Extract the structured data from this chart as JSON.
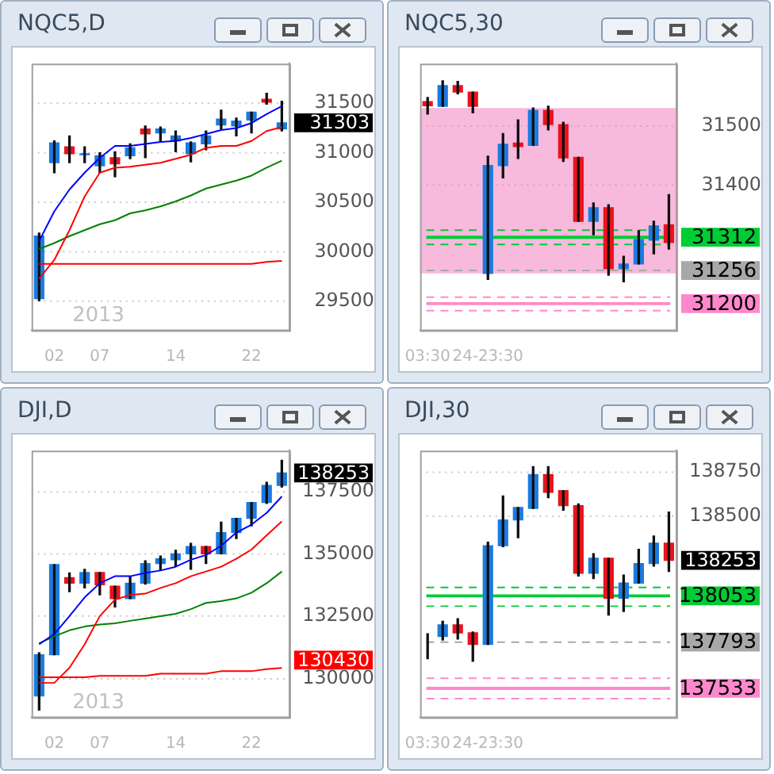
{
  "chart_data": [
    {
      "type": "candlestick",
      "title": "NQC5,D",
      "categories": [
        null,
        "02",
        null,
        null,
        "07",
        null,
        null,
        null,
        null,
        "14",
        null,
        null,
        null,
        null,
        "22",
        null,
        null
      ],
      "ohlc": [
        [
          29530,
          30190,
          29510,
          30160
        ],
        [
          30900,
          31120,
          30800,
          31100
        ],
        [
          31060,
          31170,
          30900,
          30990
        ],
        [
          30980,
          31060,
          30900,
          30990
        ],
        [
          30870,
          31000,
          30800,
          30970
        ],
        [
          30950,
          31010,
          30760,
          30890
        ],
        [
          30970,
          31090,
          30940,
          31050
        ],
        [
          31240,
          31270,
          30950,
          31190
        ],
        [
          31200,
          31260,
          31120,
          31240
        ],
        [
          31120,
          31220,
          31010,
          31170
        ],
        [
          30990,
          31110,
          30910,
          31100
        ],
        [
          31090,
          31220,
          31030,
          31170
        ],
        [
          31280,
          31430,
          31240,
          31340
        ],
        [
          31270,
          31350,
          31170,
          31320
        ],
        [
          31330,
          31410,
          31200,
          31410
        ],
        [
          31540,
          31600,
          31490,
          31510
        ],
        [
          31240,
          31520,
          31220,
          31303
        ]
      ],
      "colors": [
        "#1a7be0",
        "#1a7be0",
        "#e8141c",
        "#1a7be0",
        "#1a7be0",
        "#e8141c",
        "#1a7be0",
        "#e8141c",
        "#1a7be0",
        "#1a7be0",
        "#1a7be0",
        "#1a7be0",
        "#1a7be0",
        "#1a7be0",
        "#1a7be0",
        "#e8141c",
        "#1a7be0"
      ],
      "series": [
        {
          "type": "line",
          "color": "#0000ff",
          "values": [
            30110,
            30410,
            30630,
            30800,
            30950,
            31070,
            31070,
            31090,
            31110,
            31120,
            31150,
            31190,
            31230,
            31250,
            31300,
            31390,
            31470
          ]
        },
        {
          "type": "line",
          "color": "#ff0000",
          "values": [
            29730,
            29920,
            30220,
            30560,
            30800,
            30850,
            30860,
            30880,
            30900,
            30940,
            30980,
            31050,
            31070,
            31070,
            31120,
            31220,
            31260
          ]
        },
        {
          "type": "line",
          "color": "#008000",
          "values": [
            30030,
            30090,
            30160,
            30220,
            30280,
            30320,
            30390,
            30420,
            30460,
            30510,
            30570,
            30640,
            30680,
            30720,
            30770,
            30850,
            30920
          ]
        },
        {
          "type": "line",
          "color": "#ff0000",
          "values": [
            29880,
            29880,
            29880,
            29880,
            29880,
            29880,
            29880,
            29880,
            29880,
            29880,
            29880,
            29880,
            29880,
            29880,
            29880,
            29900,
            29910
          ]
        }
      ],
      "ylim": [
        29210,
        31900
      ],
      "yticks": [
        29500,
        30000,
        30500,
        31000,
        31500
      ],
      "grid": "y",
      "value_labels": [
        null,
        null,
        null,
        null,
        null,
        null,
        null,
        null,
        null,
        null,
        null,
        null,
        null,
        null,
        null,
        null,
        "31303"
      ],
      "annotations": [
        "2013"
      ]
    },
    {
      "type": "candlestick",
      "title": "NQC5,30",
      "categories": [
        "03:30",
        null,
        null,
        null,
        "24-23:30",
        null,
        null,
        null,
        null,
        null,
        null,
        null,
        null,
        null,
        null,
        null,
        null
      ],
      "ohlc": [
        [
          31541,
          31548,
          31520,
          31534
        ],
        [
          31533,
          31576,
          31533,
          31568
        ],
        [
          31568,
          31575,
          31554,
          31557
        ],
        [
          31557,
          31557,
          31522,
          31533
        ],
        [
          31251,
          31449,
          31241,
          31433
        ],
        [
          31433,
          31487,
          31412,
          31469
        ],
        [
          31471,
          31510,
          31445,
          31465
        ],
        [
          31467,
          31530,
          31467,
          31526
        ],
        [
          31526,
          31533,
          31493,
          31502
        ],
        [
          31502,
          31506,
          31440,
          31446
        ],
        [
          31447,
          31447,
          31339,
          31339
        ],
        [
          31339,
          31370,
          31316,
          31362
        ],
        [
          31362,
          31367,
          31248,
          31259
        ],
        [
          31259,
          31280,
          31237,
          31267
        ],
        [
          31267,
          31323,
          31267,
          31308
        ],
        [
          31307,
          31339,
          31284,
          31331
        ],
        [
          31333,
          31384,
          31292,
          31303
        ]
      ],
      "colors": [
        "#e8141c",
        "#1a7be0",
        "#e8141c",
        "#e8141c",
        "#1a7be0",
        "#1a7be0",
        "#e8141c",
        "#1a7be0",
        "#e8141c",
        "#e8141c",
        "#e8141c",
        "#1a7be0",
        "#e8141c",
        "#1a7be0",
        "#1a7be0",
        "#1a7be0",
        "#e8141c"
      ],
      "ylim": [
        31155,
        31605
      ],
      "yticks": [
        31400,
        31500
      ],
      "grid": "y",
      "bands": [
        {
          "axis": "y",
          "from": 31251,
          "to": 31530,
          "color": "#f080c0"
        }
      ],
      "ref_lines": [
        {
          "axis": "y",
          "value": 31312,
          "label": "31312",
          "color": "#00cc33",
          "line_style": "solid"
        },
        {
          "axis": "y",
          "value": 31324,
          "color": "#00cc33",
          "line_style": "dashed"
        },
        {
          "axis": "y",
          "value": 31300,
          "color": "#00cc33",
          "line_style": "dashed"
        },
        {
          "axis": "y",
          "value": 31256,
          "label": "31256",
          "color": "#a8a8a8",
          "line_style": "dashed"
        },
        {
          "axis": "y",
          "value": 31200,
          "label": "31200",
          "color": "#ff88cc",
          "line_style": "solid"
        },
        {
          "axis": "y",
          "value": 31211,
          "color": "#ff88cc",
          "line_style": "dashed"
        },
        {
          "axis": "y",
          "value": 31188,
          "color": "#ff88cc",
          "line_style": "dashed"
        }
      ]
    },
    {
      "type": "candlestick",
      "title": "DJI,D",
      "categories": [
        null,
        "02",
        null,
        null,
        "07",
        null,
        null,
        null,
        null,
        "14",
        null,
        null,
        null,
        null,
        "22",
        null,
        null
      ],
      "ohlc": [
        [
          129310,
          131040,
          128740,
          130960
        ],
        [
          130960,
          134580,
          130960,
          134580
        ],
        [
          134050,
          134240,
          133490,
          133830
        ],
        [
          133830,
          134390,
          133640,
          134260
        ],
        [
          134260,
          134260,
          133360,
          133770
        ],
        [
          133710,
          133710,
          132880,
          133210
        ],
        [
          133210,
          134110,
          133210,
          133830
        ],
        [
          133830,
          134730,
          133790,
          134620
        ],
        [
          134620,
          134920,
          134350,
          134810
        ],
        [
          134770,
          135150,
          134520,
          135010
        ],
        [
          135010,
          135430,
          134390,
          135300
        ],
        [
          135300,
          135300,
          134620,
          135010
        ],
        [
          135010,
          136280,
          135010,
          135860
        ],
        [
          135860,
          136430,
          135620,
          136430
        ],
        [
          136430,
          137070,
          136130,
          137070
        ],
        [
          137070,
          137880,
          137030,
          137750
        ],
        [
          137750,
          138760,
          137690,
          138253
        ]
      ],
      "colors": [
        "#1a7be0",
        "#1a7be0",
        "#e8141c",
        "#1a7be0",
        "#e8141c",
        "#e8141c",
        "#1a7be0",
        "#1a7be0",
        "#1a7be0",
        "#1a7be0",
        "#1a7be0",
        "#e8141c",
        "#1a7be0",
        "#1a7be0",
        "#1a7be0",
        "#1a7be0",
        "#1a7be0"
      ],
      "series": [
        {
          "type": "line",
          "color": "#0000ff",
          "values": [
            131380,
            131790,
            132510,
            133260,
            133830,
            134110,
            134110,
            134240,
            134340,
            134490,
            134770,
            134960,
            135330,
            135860,
            136180,
            136650,
            137310
          ]
        },
        {
          "type": "line",
          "color": "#ff0000",
          "values": [
            129830,
            129830,
            130440,
            131380,
            132510,
            133170,
            133360,
            133410,
            133640,
            133830,
            134110,
            134300,
            134490,
            134810,
            135180,
            135750,
            136310
          ]
        },
        {
          "type": "line",
          "color": "#008000",
          "values": [
            131420,
            131700,
            131940,
            132090,
            132170,
            132220,
            132320,
            132410,
            132510,
            132600,
            132790,
            133040,
            133110,
            133220,
            133450,
            133830,
            134300
          ]
        },
        {
          "type": "line",
          "color": "#ff0000",
          "values": [
            130060,
            130060,
            130060,
            130060,
            130110,
            130110,
            130110,
            130110,
            130200,
            130200,
            130200,
            130200,
            130300,
            130300,
            130300,
            130380,
            130430
          ],
          "value_labels": [
            null,
            null,
            null,
            null,
            null,
            null,
            null,
            null,
            null,
            null,
            null,
            null,
            null,
            null,
            null,
            null,
            "130430"
          ]
        }
      ],
      "ylim": [
        128450,
        139150
      ],
      "yticks": [
        130000,
        132500,
        135000,
        137500
      ],
      "grid": "y",
      "value_labels": [
        null,
        null,
        null,
        null,
        null,
        null,
        null,
        null,
        null,
        null,
        null,
        null,
        null,
        null,
        null,
        null,
        "138253"
      ],
      "annotations": [
        "2013"
      ]
    },
    {
      "type": "candlestick",
      "title": "DJI,30",
      "categories": [
        "03:30",
        null,
        null,
        null,
        "24-23:30",
        null,
        null,
        null,
        null,
        null,
        null,
        null,
        null,
        null,
        null,
        null,
        null
      ],
      "ohlc": [
        [
          137825,
          137840,
          137700,
          137825
        ],
        [
          137825,
          137910,
          137805,
          137890
        ],
        [
          137890,
          137925,
          137810,
          137845
        ],
        [
          137845,
          137850,
          137685,
          137780
        ],
        [
          137780,
          138355,
          137780,
          138335
        ],
        [
          138335,
          138615,
          138330,
          138480
        ],
        [
          138480,
          138550,
          138380,
          138550
        ],
        [
          138545,
          138780,
          138545,
          138735
        ],
        [
          138735,
          138780,
          138605,
          138635
        ],
        [
          138645,
          138645,
          138535,
          138560
        ],
        [
          138560,
          138570,
          138165,
          138180
        ],
        [
          138180,
          138290,
          138150,
          138265
        ],
        [
          138265,
          138265,
          137945,
          138040
        ],
        [
          138040,
          138170,
          137965,
          138125
        ],
        [
          138125,
          138315,
          138125,
          138235
        ],
        [
          138235,
          138390,
          138220,
          138350
        ],
        [
          138350,
          138525,
          138190,
          138253
        ]
      ],
      "colors": [
        "#1a7be0",
        "#1a7be0",
        "#e8141c",
        "#e8141c",
        "#1a7be0",
        "#1a7be0",
        "#1a7be0",
        "#1a7be0",
        "#e8141c",
        "#e8141c",
        "#e8141c",
        "#1a7be0",
        "#e8141c",
        "#1a7be0",
        "#1a7be0",
        "#1a7be0",
        "#e8141c"
      ],
      "ylim": [
        137370,
        138870
      ],
      "yticks": [
        138500,
        138750
      ],
      "grid": "y",
      "ref_lines": [
        {
          "axis": "y",
          "value": 138053,
          "label": "138053",
          "color": "#00cc33",
          "line_style": "solid"
        },
        {
          "axis": "y",
          "value": 138100,
          "color": "#00cc33",
          "line_style": "dashed"
        },
        {
          "axis": "y",
          "value": 137995,
          "color": "#00cc33",
          "line_style": "dashed"
        },
        {
          "axis": "y",
          "value": 137793,
          "label": "137793",
          "color": "#a8a8a8",
          "line_style": "dashed"
        },
        {
          "axis": "y",
          "value": 137533,
          "label": "137533",
          "color": "#ff88cc",
          "line_style": "solid"
        },
        {
          "axis": "y",
          "value": 137590,
          "color": "#ff88cc",
          "line_style": "dashed"
        },
        {
          "axis": "y",
          "value": 137475,
          "color": "#ff88cc",
          "line_style": "dashed"
        }
      ],
      "value_labels": [
        null,
        null,
        null,
        null,
        null,
        null,
        null,
        null,
        null,
        null,
        null,
        null,
        null,
        null,
        null,
        null,
        "138253"
      ]
    }
  ]
}
